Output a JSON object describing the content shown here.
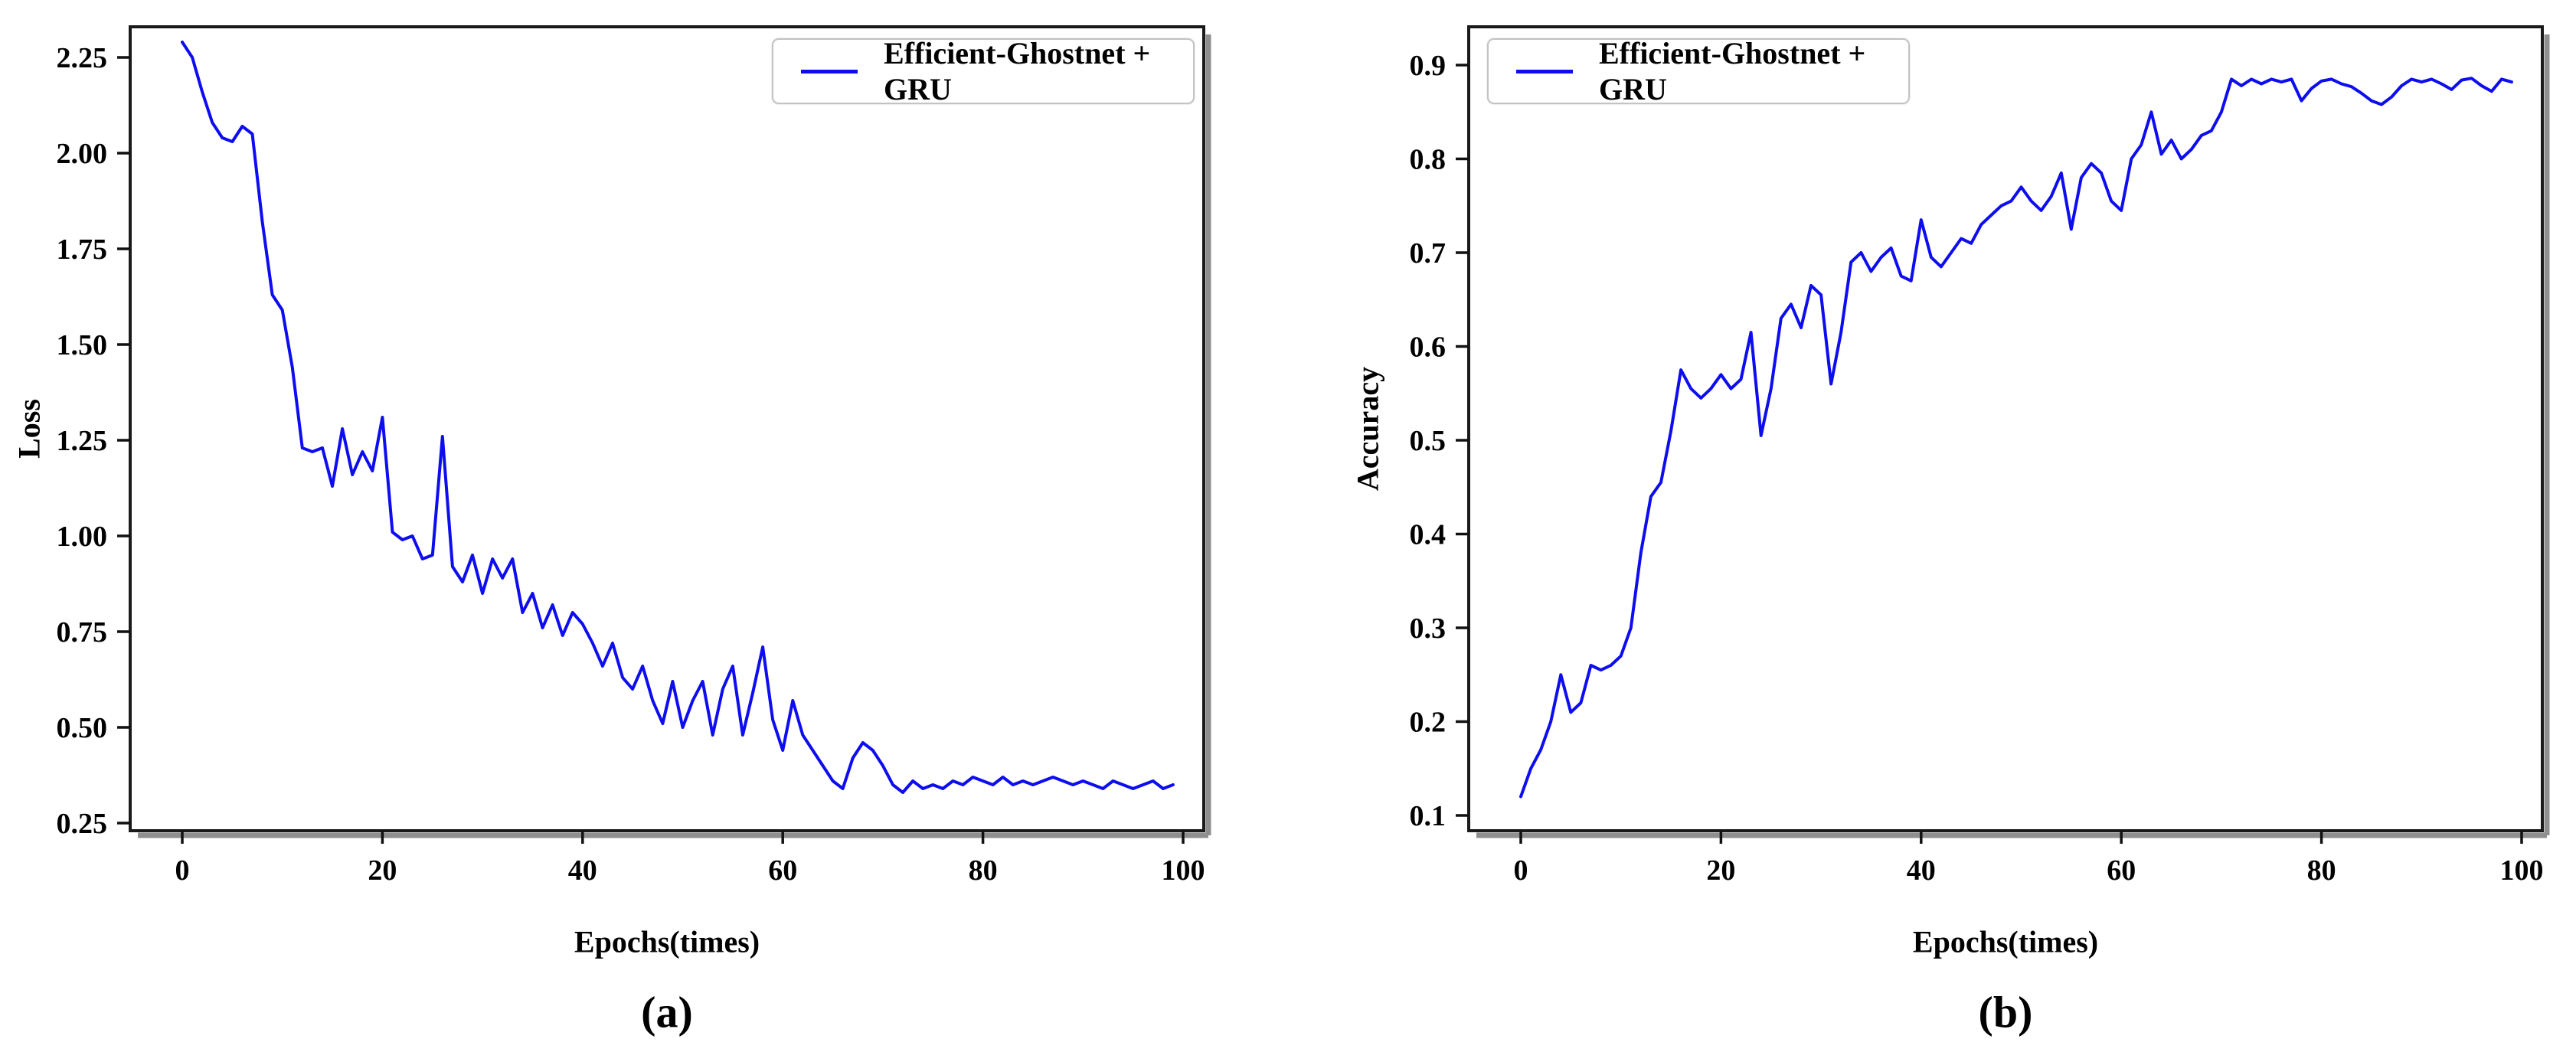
{
  "figure": {
    "background": "#ffffff",
    "accent_blue": "#0d0df0",
    "spine_color": "#1a1a1a",
    "shadow_color": "#8f8f8f"
  },
  "chart_data": [
    {
      "type": "line",
      "panel": "a",
      "caption": "(a)",
      "title": "",
      "xlabel": "Epochs(times)",
      "ylabel": "Loss",
      "legend": {
        "position": "top-right",
        "entries": [
          {
            "label": "Efficient-Ghostnet + GRU",
            "color": "#0d0df0"
          }
        ]
      },
      "grid": false,
      "xlim": [
        -5.2,
        102.1
      ],
      "ylim": [
        0.23,
        2.33
      ],
      "xticks": [
        0,
        20,
        40,
        60,
        80,
        100
      ],
      "xticklabels": [
        "0",
        "20",
        "40",
        "60",
        "80",
        "100"
      ],
      "yticks": [
        2.25,
        2.0,
        1.75,
        1.5,
        1.25,
        1.0,
        0.75,
        0.5,
        0.25
      ],
      "yticklabels": [
        "2.25",
        "2.00",
        "1.75",
        "1.50",
        "1.25",
        "1.00",
        "0.75",
        "0.50",
        "0.25"
      ],
      "x_start": 0,
      "x_step": 1,
      "values": [
        2.29,
        2.25,
        2.16,
        2.08,
        2.04,
        2.03,
        2.07,
        2.05,
        1.82,
        1.63,
        1.59,
        1.44,
        1.23,
        1.22,
        1.23,
        1.13,
        1.28,
        1.16,
        1.22,
        1.17,
        1.31,
        1.01,
        0.99,
        1.0,
        0.94,
        0.95,
        1.26,
        0.92,
        0.88,
        0.95,
        0.85,
        0.94,
        0.89,
        0.94,
        0.8,
        0.85,
        0.76,
        0.82,
        0.74,
        0.8,
        0.77,
        0.72,
        0.66,
        0.72,
        0.63,
        0.6,
        0.66,
        0.57,
        0.51,
        0.62,
        0.5,
        0.57,
        0.62,
        0.48,
        0.6,
        0.66,
        0.48,
        0.59,
        0.71,
        0.52,
        0.44,
        0.57,
        0.48,
        0.44,
        0.4,
        0.36,
        0.34,
        0.42,
        0.46,
        0.44,
        0.4,
        0.35,
        0.33,
        0.36,
        0.34,
        0.35,
        0.34,
        0.36,
        0.35,
        0.37,
        0.36,
        0.35,
        0.37,
        0.35,
        0.36,
        0.35,
        0.36,
        0.37,
        0.36,
        0.35,
        0.36,
        0.35,
        0.34,
        0.36,
        0.35,
        0.34,
        0.35,
        0.36,
        0.34,
        0.35
      ]
    },
    {
      "type": "line",
      "panel": "b",
      "caption": "(b)",
      "title": "",
      "xlabel": "Epochs(times)",
      "ylabel": "Accuracy",
      "legend": {
        "position": "top-left",
        "entries": [
          {
            "label": "Efficient-Ghostnet + GRU",
            "color": "#0d0df0"
          }
        ]
      },
      "grid": false,
      "xlim": [
        -5.2,
        102.1
      ],
      "ylim": [
        0.084,
        0.941
      ],
      "xticks": [
        0,
        20,
        40,
        60,
        80,
        100
      ],
      "xticklabels": [
        "0",
        "20",
        "40",
        "60",
        "80",
        "100"
      ],
      "yticks": [
        0.9,
        0.8,
        0.7,
        0.6,
        0.5,
        0.4,
        0.3,
        0.2,
        0.1
      ],
      "yticklabels": [
        "0.9",
        "0.8",
        "0.7",
        "0.6",
        "0.5",
        "0.4",
        "0.3",
        "0.2",
        "0.1"
      ],
      "x_start": 0,
      "x_step": 1,
      "values": [
        0.12,
        0.15,
        0.17,
        0.2,
        0.25,
        0.21,
        0.22,
        0.26,
        0.255,
        0.26,
        0.27,
        0.3,
        0.38,
        0.44,
        0.455,
        0.51,
        0.575,
        0.555,
        0.545,
        0.555,
        0.57,
        0.555,
        0.565,
        0.615,
        0.505,
        0.555,
        0.63,
        0.645,
        0.62,
        0.665,
        0.655,
        0.56,
        0.615,
        0.69,
        0.7,
        0.68,
        0.695,
        0.705,
        0.675,
        0.67,
        0.735,
        0.695,
        0.685,
        0.7,
        0.715,
        0.71,
        0.73,
        0.74,
        0.75,
        0.755,
        0.77,
        0.755,
        0.745,
        0.76,
        0.785,
        0.725,
        0.78,
        0.795,
        0.785,
        0.755,
        0.745,
        0.8,
        0.815,
        0.85,
        0.805,
        0.82,
        0.8,
        0.81,
        0.825,
        0.83,
        0.85,
        0.885,
        0.878,
        0.885,
        0.88,
        0.885,
        0.882,
        0.885,
        0.862,
        0.875,
        0.883,
        0.885,
        0.88,
        0.877,
        0.87,
        0.862,
        0.858,
        0.866,
        0.878,
        0.885,
        0.882,
        0.885,
        0.88,
        0.874,
        0.884,
        0.886,
        0.878,
        0.872,
        0.885,
        0.882
      ]
    }
  ]
}
